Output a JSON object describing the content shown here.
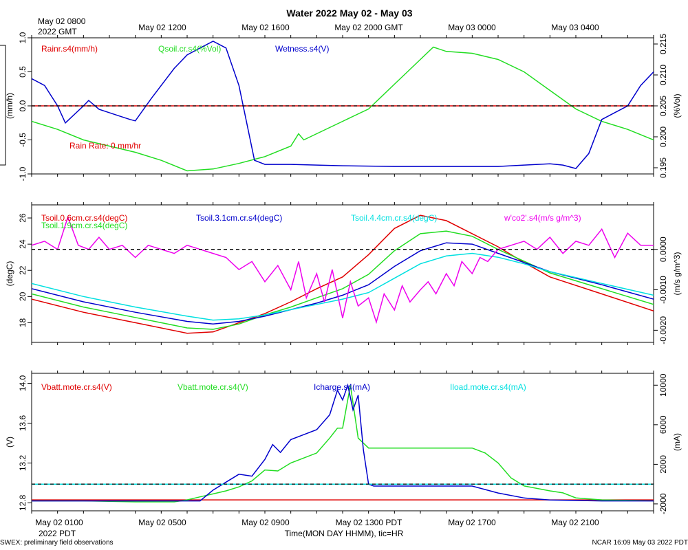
{
  "title": "Water 2022 May 02 - May 03",
  "top_axis": {
    "first_label": "May 02 0800",
    "first_sub": "2022 GMT",
    "labels": [
      "May 02 1200",
      "May 02 1600",
      "May 02 2000 GMT",
      "May 03 0000",
      "May 03 0400"
    ]
  },
  "bottom_axis": {
    "first_label": "May 02 0100",
    "first_sub": "2022 PDT",
    "labels": [
      "May 02 0500",
      "May 02 0900",
      "May 02 1300 PDT",
      "May 02 1700",
      "May 02 2100"
    ],
    "xlabel": "Time(MON DAY HHMM), tic=HR"
  },
  "footer": {
    "left": "SWEX: preliminary field observations",
    "right": "NCAR 16:09 May 03 2022 PDT"
  },
  "colors": {
    "red": "#e00000",
    "green": "#22dd22",
    "blue": "#0000cc",
    "cyan": "#00e0e0",
    "magenta": "#ee00ee"
  },
  "chart_data": [
    {
      "type": "line",
      "name": "Water",
      "x": [
        0,
        24
      ],
      "left_axis": {
        "label": "(mm/h)",
        "ylim": [
          -1.0,
          1.0
        ],
        "ticks": [
          "1.0",
          "0.5",
          "0.0",
          "-0.5",
          "-1.0"
        ]
      },
      "right_axis": {
        "label": "(%Vol)",
        "ylim": [
          0.194,
          0.216
        ],
        "ticks": [
          "0.215",
          "0.210",
          "0.205",
          "0.200",
          "0.195"
        ]
      },
      "legend": [
        "Rainr.s4(mm/h)",
        "Qsoil.cr.s4(%Vol)",
        "Wetness.s4(V)"
      ],
      "annotation": "Rain Rate: 0 mm/hr",
      "series": [
        {
          "name": "Rainr.s4(mm/h)",
          "color": "red",
          "axis": "left",
          "x": [
            0,
            24
          ],
          "values": [
            0,
            0
          ]
        },
        {
          "name": "Qsoil.cr.s4(%Vol)",
          "color": "green",
          "axis": "right",
          "x": [
            0,
            1,
            2,
            3,
            4,
            5,
            6,
            7,
            8,
            9,
            10,
            10.3,
            10.5,
            11,
            12,
            13,
            14,
            15,
            15.5,
            16,
            17,
            18,
            19,
            20,
            21,
            22,
            23,
            24
          ],
          "values": [
            0.2025,
            0.2012,
            0.1995,
            0.1985,
            0.1975,
            0.1962,
            0.1945,
            0.1948,
            0.1957,
            0.1968,
            0.1985,
            0.2005,
            0.1995,
            0.2005,
            0.2025,
            0.2045,
            0.2085,
            0.2125,
            0.2145,
            0.2138,
            0.2135,
            0.2125,
            0.2105,
            0.2075,
            0.2045,
            0.2025,
            0.2012,
            0.1995
          ]
        },
        {
          "name": "Wetness.s4(V)",
          "color": "blue",
          "axis": "left",
          "x": [
            0,
            0.5,
            1,
            1.3,
            2,
            2.2,
            2.6,
            3,
            3.4,
            3.8,
            4,
            4.6,
            5,
            5.5,
            6,
            6.5,
            7,
            7.5,
            8,
            8.6,
            9,
            10,
            12,
            14,
            16,
            18,
            19,
            20,
            20.5,
            21,
            21.5,
            22,
            23,
            23.5,
            24
          ],
          "values": [
            0.4,
            0.3,
            0.0,
            -0.25,
            0.0,
            0.08,
            -0.05,
            -0.1,
            -0.15,
            -0.2,
            -0.22,
            0.1,
            0.3,
            0.55,
            0.75,
            0.85,
            0.95,
            0.85,
            0.3,
            -0.8,
            -0.86,
            -0.86,
            -0.88,
            -0.89,
            -0.89,
            -0.89,
            -0.87,
            -0.85,
            -0.87,
            -0.92,
            -0.7,
            -0.2,
            0.0,
            0.3,
            0.5
          ]
        }
      ]
    },
    {
      "type": "line",
      "name": "Soil temperature and flux",
      "x": [
        0,
        24
      ],
      "left_axis": {
        "label": "(degC)",
        "ylim": [
          16.5,
          27
        ],
        "ticks": [
          "26",
          "24",
          "22",
          "20",
          "18"
        ]
      },
      "right_axis": {
        "label": "(m/s g/m^3)",
        "ylim": [
          -0.0023,
          0.0011
        ],
        "ticks": [
          "0.0000",
          "-0.0010",
          "-0.0020"
        ]
      },
      "legend": [
        "Tsoil.0.6cm.cr.s4(degC)",
        "Tsoil.1.9cm.cr.s4(degC)",
        "Tsoil.3.1cm.cr.s4(degC)",
        "Tsoil.4.4cm.cr.s4(degC)",
        "w'co2'.s4(m/s g/m^3)"
      ],
      "series": [
        {
          "name": "Tsoil.0.6cm.cr.s4(degC)",
          "color": "red",
          "axis": "left",
          "x": [
            0,
            2,
            4,
            6,
            7,
            8,
            9,
            10,
            11,
            12,
            13,
            14,
            15,
            16,
            17,
            18,
            19,
            20,
            22,
            24
          ],
          "values": [
            19.8,
            18.8,
            18.0,
            17.2,
            17.3,
            18.0,
            18.7,
            19.6,
            20.6,
            21.5,
            23.2,
            25.2,
            26.2,
            25.8,
            24.8,
            23.8,
            22.6,
            21.5,
            20.2,
            18.9
          ]
        },
        {
          "name": "Tsoil.1.9cm.cr.s4(degC)",
          "color": "green",
          "axis": "left",
          "x": [
            0,
            2,
            4,
            6,
            7,
            8,
            9,
            10,
            11,
            12,
            13,
            14,
            15,
            16,
            17,
            18,
            19,
            20,
            22,
            24
          ],
          "values": [
            20.2,
            19.2,
            18.4,
            17.6,
            17.5,
            17.9,
            18.6,
            19.2,
            19.9,
            20.6,
            21.7,
            23.5,
            24.8,
            25.0,
            24.6,
            23.6,
            22.7,
            21.8,
            20.6,
            19.4
          ]
        },
        {
          "name": "Tsoil.3.1cm.cr.s4(degC)",
          "color": "blue",
          "axis": "left",
          "x": [
            0,
            2,
            4,
            6,
            7,
            8,
            9,
            10,
            11,
            12,
            13,
            14,
            15,
            16,
            17,
            18,
            19,
            20,
            22,
            24
          ],
          "values": [
            20.6,
            19.6,
            18.8,
            18.1,
            17.9,
            18.1,
            18.5,
            19.0,
            19.5,
            20.1,
            20.9,
            22.3,
            23.5,
            24.1,
            24.0,
            23.3,
            22.6,
            21.9,
            20.9,
            19.8
          ]
        },
        {
          "name": "Tsoil.4.4cm.cr.s4(degC)",
          "color": "cyan",
          "axis": "left",
          "x": [
            0,
            2,
            4,
            6,
            7,
            8,
            9,
            10,
            11,
            12,
            13,
            14,
            15,
            16,
            17,
            18,
            19,
            20,
            22,
            24
          ],
          "values": [
            21.0,
            20.0,
            19.2,
            18.5,
            18.2,
            18.3,
            18.6,
            19.0,
            19.4,
            19.8,
            20.3,
            21.4,
            22.5,
            23.1,
            23.3,
            23.0,
            22.5,
            21.9,
            21.0,
            20.1
          ]
        },
        {
          "name": "w'co2'.s4(m/s g/m^3)",
          "color": "magenta",
          "axis": "right",
          "x": [
            0,
            0.5,
            1,
            1.4,
            1.8,
            2.2,
            2.6,
            3,
            3.5,
            4,
            4.5,
            5,
            5.5,
            6,
            6.5,
            7,
            7.5,
            8,
            8.5,
            9,
            9.5,
            10,
            10.3,
            10.6,
            11,
            11.3,
            11.6,
            12,
            12.3,
            12.6,
            13,
            13.3,
            13.6,
            14,
            14.3,
            14.6,
            15,
            15.3,
            15.6,
            16,
            16.3,
            16.6,
            17,
            17.3,
            17.6,
            18,
            18.5,
            19,
            19.5,
            20,
            20.5,
            21,
            21.5,
            22,
            22.5,
            23,
            23.5,
            24
          ],
          "values": [
            0.0001,
            0.0002,
            0.0,
            0.0008,
            0.0001,
            0.0,
            0.0003,
            0.0,
            0.0001,
            -0.0002,
            0.0001,
            0.0,
            -0.0001,
            0.0001,
            0.0,
            -0.0001,
            -0.0002,
            -0.0005,
            -0.0003,
            -0.0008,
            -0.0004,
            -0.001,
            -0.0003,
            -0.0012,
            -0.0006,
            -0.0013,
            -0.0005,
            -0.0017,
            -0.0008,
            -0.0014,
            -0.0012,
            -0.0018,
            -0.0011,
            -0.0015,
            -0.0009,
            -0.0013,
            -0.001,
            -0.0008,
            -0.0011,
            -0.0006,
            -0.0009,
            -0.0003,
            -0.0006,
            -0.0002,
            -0.0003,
            0.0,
            0.0001,
            0.0002,
            0.0,
            0.0003,
            -0.0001,
            0.0002,
            0.0001,
            0.0005,
            -0.0002,
            0.0004,
            0.0001,
            0.0001
          ]
        }
      ]
    },
    {
      "type": "line",
      "name": "Power",
      "x": [
        0,
        24
      ],
      "left_axis": {
        "label": "(V)",
        "ylim": [
          12.72,
          14.1
        ],
        "ticks": [
          "14.0",
          "13.6",
          "13.2",
          "12.8"
        ]
      },
      "right_axis": {
        "label": "(mA)",
        "ylim": [
          -2700,
          11200
        ],
        "ticks": [
          "10000",
          "6000",
          "2000",
          "-2000"
        ]
      },
      "legend": [
        "Vbatt.mote.cr.s4(V)",
        "Vbatt.mote.cr.s4(V)",
        "Icharge.s4(mA)",
        "Iload.mote.cr.s4(mA)"
      ],
      "series": [
        {
          "name": "Vbatt.mote.cr.s4(V)",
          "color": "red",
          "axis": "left",
          "x": [
            0,
            24
          ],
          "values": [
            12.83,
            12.83
          ]
        },
        {
          "name": "Vbatt.mote.cr.s4(V)",
          "color": "green",
          "axis": "left",
          "x": [
            0,
            2,
            4,
            5.5,
            6,
            6.5,
            7,
            7.5,
            8,
            8.5,
            9,
            9.5,
            10,
            10.5,
            11,
            11.5,
            11.8,
            12,
            12.3,
            12.6,
            13,
            13.2,
            13.5,
            14,
            15,
            16,
            17,
            17.5,
            18,
            18.5,
            19,
            20,
            20.5,
            21,
            22,
            24
          ],
          "values": [
            12.82,
            12.82,
            12.81,
            12.81,
            12.83,
            12.86,
            12.89,
            12.92,
            12.96,
            13.02,
            13.13,
            13.12,
            13.2,
            13.25,
            13.3,
            13.45,
            13.55,
            13.55,
            13.98,
            13.45,
            13.35,
            13.35,
            13.35,
            13.35,
            13.35,
            13.35,
            13.35,
            13.3,
            13.2,
            13.05,
            12.97,
            12.92,
            12.9,
            12.85,
            12.83,
            12.82
          ]
        },
        {
          "name": "Icharge.s4(mA)",
          "color": "blue",
          "axis": "right",
          "x": [
            0,
            3,
            5,
            6.5,
            7,
            7.5,
            8,
            8.5,
            9,
            9.3,
            9.6,
            10,
            10.5,
            11,
            11.5,
            11.8,
            12,
            12.2,
            12.4,
            12.6,
            12.8,
            13,
            13.2,
            15,
            17,
            18,
            19,
            20,
            22,
            24
          ],
          "values": [
            -1700,
            -1700,
            -1700,
            -1700,
            -600,
            200,
            1000,
            800,
            2500,
            4000,
            3200,
            4500,
            5000,
            5500,
            7000,
            9500,
            8500,
            10000,
            7500,
            9000,
            3500,
            0,
            -200,
            -200,
            -200,
            -900,
            -1400,
            -1600,
            -1700,
            -1700
          ]
        },
        {
          "name": "Iload.mote.cr.s4(mA)",
          "color": "cyan",
          "axis": "right",
          "x": [
            0,
            24
          ],
          "values": [
            0,
            0
          ]
        }
      ]
    }
  ]
}
